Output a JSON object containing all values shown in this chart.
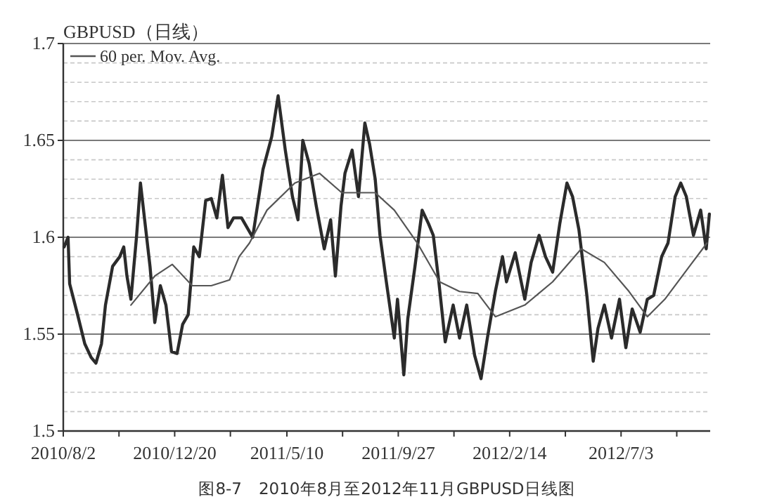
{
  "chart_data": {
    "type": "line",
    "title": "GBPUSD（日线）",
    "annotations": [
      "图8-7　2010年8月至2012年11月GBPUSD日线图"
    ],
    "xlim": [
      "2010-08-02",
      "2012-10-23"
    ],
    "ylim": [
      1.5,
      1.7
    ],
    "xticks": [
      {
        "value": "2010-08-02",
        "label": "2010/8/2"
      },
      {
        "value": "2010-10-11",
        "label": null
      },
      {
        "value": "2010-12-20",
        "label": "2010/12/20"
      },
      {
        "value": "2011-02-28",
        "label": null
      },
      {
        "value": "2011-05-10",
        "label": "2011/5/10"
      },
      {
        "value": "2011-07-19",
        "label": null
      },
      {
        "value": "2011-09-27",
        "label": "2011/9/27"
      },
      {
        "value": "2011-12-06",
        "label": null
      },
      {
        "value": "2012-02-14",
        "label": "2012/2/14"
      },
      {
        "value": "2012-04-24",
        "label": null
      },
      {
        "value": "2012-07-03",
        "label": "2012/7/3"
      },
      {
        "value": "2012-09-11",
        "label": null
      }
    ],
    "yticks": [
      {
        "value": 1.5,
        "label": "1.5"
      },
      {
        "value": 1.51,
        "label": null
      },
      {
        "value": 1.52,
        "label": null
      },
      {
        "value": 1.53,
        "label": null
      },
      {
        "value": 1.54,
        "label": null
      },
      {
        "value": 1.55,
        "label": "1.55"
      },
      {
        "value": 1.56,
        "label": null
      },
      {
        "value": 1.57,
        "label": null
      },
      {
        "value": 1.58,
        "label": null
      },
      {
        "value": 1.59,
        "label": null
      },
      {
        "value": 1.6,
        "label": "1.6"
      },
      {
        "value": 1.61,
        "label": null
      },
      {
        "value": 1.62,
        "label": null
      },
      {
        "value": 1.63,
        "label": null
      },
      {
        "value": 1.64,
        "label": null
      },
      {
        "value": 1.65,
        "label": "1.65"
      },
      {
        "value": 1.66,
        "label": null
      },
      {
        "value": 1.67,
        "label": null
      },
      {
        "value": 1.68,
        "label": null
      },
      {
        "value": 1.69,
        "label": null
      },
      {
        "value": 1.7,
        "label": "1.7"
      }
    ],
    "grid": "y",
    "legend": "top left",
    "series": [
      {
        "color": "#2b2b2b",
        "x": [
          "2010-08-03",
          "2010-08-08",
          "2010-08-10",
          "2010-08-20",
          "2010-08-29",
          "2010-09-06",
          "2010-09-12",
          "2010-09-19",
          "2010-09-24",
          "2010-10-03",
          "2010-10-12",
          "2010-10-17",
          "2010-10-21",
          "2010-10-26",
          "2010-11-02",
          "2010-11-07",
          "2010-11-12",
          "2010-11-19",
          "2010-11-25",
          "2010-12-02",
          "2010-12-09",
          "2010-12-16",
          "2010-12-23",
          "2010-12-30",
          "2011-01-06",
          "2011-01-13",
          "2011-01-20",
          "2011-01-28",
          "2011-02-04",
          "2011-02-11",
          "2011-02-18",
          "2011-02-25",
          "2011-03-04",
          "2011-03-14",
          "2011-03-28",
          "2011-04-10",
          "2011-04-21",
          "2011-04-29",
          "2011-05-08",
          "2011-05-17",
          "2011-05-24",
          "2011-05-30",
          "2011-06-07",
          "2011-06-16",
          "2011-06-26",
          "2011-07-04",
          "2011-07-10",
          "2011-07-17",
          "2011-07-22",
          "2011-07-31",
          "2011-08-08",
          "2011-08-16",
          "2011-08-22",
          "2011-08-29",
          "2011-09-04",
          "2011-09-12",
          "2011-09-22",
          "2011-09-26",
          "2011-10-04",
          "2011-10-09",
          "2011-10-18",
          "2011-10-27",
          "2011-11-04",
          "2011-11-10",
          "2011-11-17",
          "2011-11-25",
          "2011-12-05",
          "2011-12-13",
          "2011-12-22",
          "2012-01-01",
          "2012-01-09",
          "2012-01-17",
          "2012-01-27",
          "2012-02-05",
          "2012-02-10",
          "2012-02-21",
          "2012-03-04",
          "2012-03-12",
          "2012-03-22",
          "2012-03-30",
          "2012-04-08",
          "2012-04-17",
          "2012-04-26",
          "2012-05-03",
          "2012-05-11",
          "2012-05-21",
          "2012-05-29",
          "2012-06-04",
          "2012-06-12",
          "2012-06-21",
          "2012-07-01",
          "2012-07-09",
          "2012-07-17",
          "2012-07-27",
          "2012-08-05",
          "2012-08-13",
          "2012-08-23",
          "2012-08-31",
          "2012-09-09",
          "2012-09-16",
          "2012-09-23",
          "2012-10-02",
          "2012-10-11",
          "2012-10-18",
          "2012-10-22"
        ],
        "values": [
          1.595,
          1.6,
          1.576,
          1.56,
          1.545,
          1.538,
          1.535,
          1.545,
          1.565,
          1.585,
          1.59,
          1.595,
          1.58,
          1.568,
          1.6,
          1.628,
          1.61,
          1.585,
          1.556,
          1.575,
          1.565,
          1.541,
          1.54,
          1.555,
          1.56,
          1.595,
          1.59,
          1.619,
          1.62,
          1.61,
          1.632,
          1.605,
          1.61,
          1.61,
          1.6,
          1.635,
          1.652,
          1.673,
          1.645,
          1.621,
          1.609,
          1.65,
          1.638,
          1.616,
          1.594,
          1.609,
          1.58,
          1.616,
          1.633,
          1.645,
          1.621,
          1.659,
          1.648,
          1.63,
          1.601,
          1.577,
          1.548,
          1.568,
          1.529,
          1.558,
          1.585,
          1.614,
          1.607,
          1.601,
          1.577,
          1.546,
          1.565,
          1.548,
          1.565,
          1.539,
          1.527,
          1.548,
          1.572,
          1.59,
          1.577,
          1.592,
          1.568,
          1.587,
          1.601,
          1.59,
          1.582,
          1.607,
          1.628,
          1.621,
          1.604,
          1.57,
          1.536,
          1.553,
          1.565,
          1.548,
          1.568,
          1.543,
          1.563,
          1.551,
          1.568,
          1.57,
          1.59,
          1.597,
          1.621,
          1.628,
          1.621,
          1.601,
          1.614,
          1.594,
          1.612
        ]
      },
      {
        "name": "60 per. Mov. Avg.",
        "color": "#555555",
        "x": [
          "2010-10-26",
          "2010-11-25",
          "2010-12-17",
          "2011-01-11",
          "2011-02-04",
          "2011-02-27",
          "2011-03-11",
          "2011-03-24",
          "2011-04-15",
          "2011-05-20",
          "2011-06-20",
          "2011-07-18",
          "2011-08-29",
          "2011-09-22",
          "2011-10-21",
          "2011-11-18",
          "2011-12-13",
          "2012-01-05",
          "2012-01-27",
          "2012-03-04",
          "2012-04-08",
          "2012-05-14",
          "2012-06-12",
          "2012-07-13",
          "2012-08-05",
          "2012-08-27",
          "2012-09-27",
          "2012-10-19"
        ],
        "values": [
          1.565,
          1.58,
          1.586,
          1.575,
          1.575,
          1.578,
          1.59,
          1.597,
          1.614,
          1.628,
          1.633,
          1.623,
          1.623,
          1.614,
          1.597,
          1.577,
          1.572,
          1.571,
          1.559,
          1.565,
          1.577,
          1.594,
          1.587,
          1.572,
          1.559,
          1.568,
          1.585,
          1.597
        ]
      }
    ]
  }
}
